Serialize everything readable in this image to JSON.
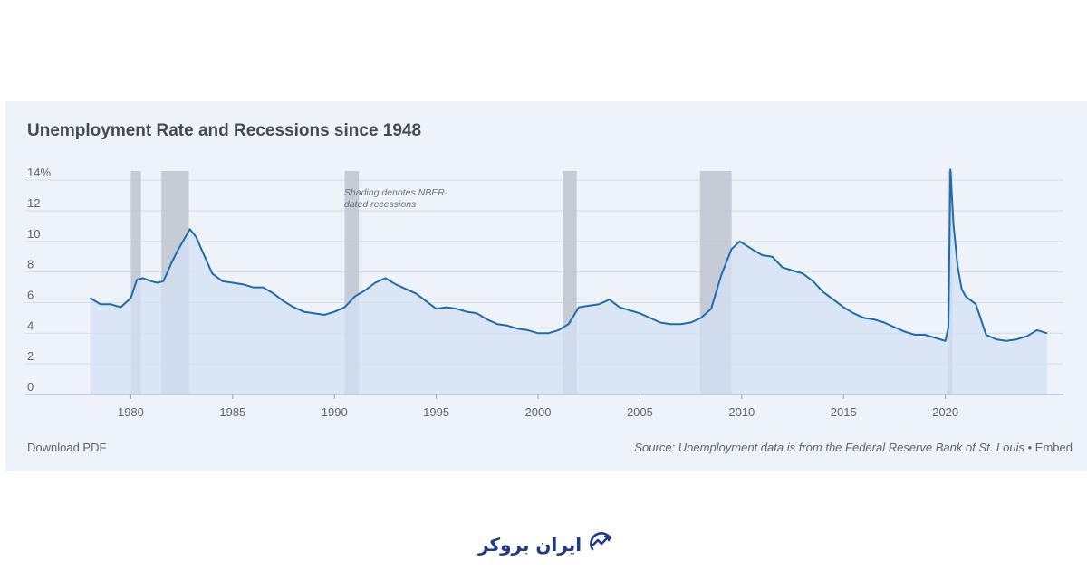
{
  "chart_data": {
    "type": "line",
    "title": "Unemployment Rate and Recessions since 1948",
    "xlabel": "",
    "ylabel": "",
    "xlim": [
      1976.6,
      2025.8
    ],
    "ylim": [
      0,
      14.6
    ],
    "x_ticks": [
      1980,
      1985,
      1990,
      1995,
      2000,
      2005,
      2010,
      2015,
      2020
    ],
    "y_ticks": [
      {
        "value": 0,
        "label": "0"
      },
      {
        "value": 2,
        "label": "2"
      },
      {
        "value": 4,
        "label": "4"
      },
      {
        "value": 6,
        "label": "6"
      },
      {
        "value": 8,
        "label": "8"
      },
      {
        "value": 10,
        "label": "10"
      },
      {
        "value": 12,
        "label": "12"
      },
      {
        "value": 14,
        "label": "14%"
      }
    ],
    "annotation": [
      "Shading denotes NBER-",
      "dated recessions"
    ],
    "annotation_anchor": {
      "x": 1993.5,
      "y": 13.0
    },
    "recessions": [
      {
        "start": 1980.0,
        "end": 1980.5
      },
      {
        "start": 1981.5,
        "end": 1982.85
      },
      {
        "start": 1990.5,
        "end": 1991.2
      },
      {
        "start": 2001.2,
        "end": 2001.9
      },
      {
        "start": 2007.95,
        "end": 2009.5
      },
      {
        "start": 2020.1,
        "end": 2020.35
      }
    ],
    "series": [
      {
        "name": "Unemployment rate",
        "color": "#1f6bb0",
        "fill": "#d3e1f4",
        "x": [
          1978.0,
          1978.5,
          1979.0,
          1979.5,
          1980.0,
          1980.3,
          1980.6,
          1981.0,
          1981.3,
          1981.6,
          1982.0,
          1982.3,
          1982.6,
          1982.9,
          1983.2,
          1983.5,
          1984.0,
          1984.5,
          1985.0,
          1985.5,
          1986.0,
          1986.5,
          1987.0,
          1987.5,
          1988.0,
          1988.5,
          1989.0,
          1989.5,
          1990.0,
          1990.5,
          1991.0,
          1991.5,
          1992.0,
          1992.5,
          1993.0,
          1993.5,
          1994.0,
          1994.5,
          1995.0,
          1995.5,
          1996.0,
          1996.5,
          1997.0,
          1997.5,
          1998.0,
          1998.5,
          1999.0,
          1999.5,
          2000.0,
          2000.5,
          2001.0,
          2001.5,
          2002.0,
          2002.5,
          2003.0,
          2003.5,
          2004.0,
          2004.5,
          2005.0,
          2005.5,
          2006.0,
          2006.5,
          2007.0,
          2007.5,
          2008.0,
          2008.5,
          2009.0,
          2009.5,
          2009.9,
          2010.5,
          2011.0,
          2011.5,
          2012.0,
          2012.5,
          2013.0,
          2013.5,
          2014.0,
          2014.5,
          2015.0,
          2015.5,
          2016.0,
          2016.5,
          2017.0,
          2017.5,
          2018.0,
          2018.5,
          2019.0,
          2019.5,
          2020.0,
          2020.15,
          2020.25,
          2020.4,
          2020.6,
          2020.8,
          2021.0,
          2021.5,
          2022.0,
          2022.5,
          2023.0,
          2023.5,
          2024.0,
          2024.5,
          2025.0
        ],
        "values": [
          6.3,
          5.9,
          5.9,
          5.7,
          6.3,
          7.5,
          7.6,
          7.4,
          7.3,
          7.4,
          8.6,
          9.4,
          10.1,
          10.8,
          10.3,
          9.4,
          7.9,
          7.4,
          7.3,
          7.2,
          7.0,
          7.0,
          6.6,
          6.1,
          5.7,
          5.4,
          5.3,
          5.2,
          5.4,
          5.7,
          6.4,
          6.8,
          7.3,
          7.6,
          7.2,
          6.9,
          6.6,
          6.1,
          5.6,
          5.7,
          5.6,
          5.4,
          5.3,
          4.9,
          4.6,
          4.5,
          4.3,
          4.2,
          4.0,
          4.0,
          4.2,
          4.6,
          5.7,
          5.8,
          5.9,
          6.2,
          5.7,
          5.5,
          5.3,
          5.0,
          4.7,
          4.6,
          4.6,
          4.7,
          5.0,
          5.6,
          7.8,
          9.5,
          10.0,
          9.5,
          9.1,
          9.0,
          8.3,
          8.1,
          7.9,
          7.4,
          6.7,
          6.2,
          5.7,
          5.3,
          5.0,
          4.9,
          4.7,
          4.4,
          4.1,
          3.9,
          3.9,
          3.7,
          3.5,
          4.4,
          14.7,
          11.1,
          8.4,
          6.9,
          6.4,
          5.9,
          3.9,
          3.6,
          3.5,
          3.6,
          3.8,
          4.2,
          4.0
        ]
      }
    ]
  },
  "footer": {
    "download_label": "Download PDF",
    "source_text": "Source: Unemployment data is from the Federal Reserve Bank of St. Louis",
    "separator": " • ",
    "embed_label": "Embed"
  },
  "branding": {
    "logo_text": "ایران بروکر"
  },
  "colors": {
    "card_bg": "#eef3fa",
    "recession": "#bdc4cf",
    "grid": "#d6dde7",
    "axis_text": "#5b6470",
    "brand": "#1f3a8a"
  }
}
